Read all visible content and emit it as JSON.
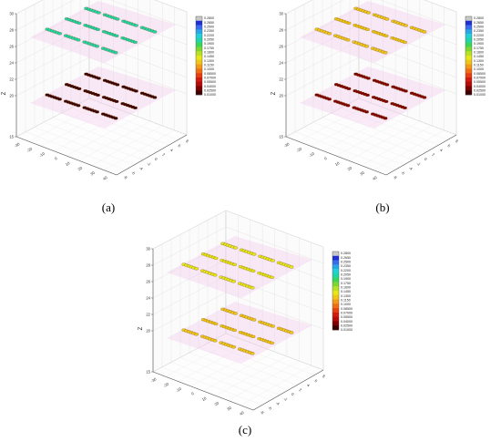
{
  "chart_data": [
    {
      "type": "scatter3d",
      "panel_label": "(a)",
      "zlabel": "Z",
      "zlim": [
        15,
        30
      ],
      "zticks": [
        "15",
        "20",
        "22",
        "24",
        "26",
        "28",
        "30"
      ],
      "xticks": [
        "-30",
        "-20",
        "-10",
        "0",
        "10",
        "20",
        "30",
        "40"
      ],
      "yticks": [
        "-8",
        "-6",
        "-4",
        "-2",
        "0",
        "2",
        "4",
        "6",
        "8"
      ],
      "layers": [
        {
          "z": 20,
          "dominant_value": 0.015
        },
        {
          "z": 28,
          "dominant_value": 0.2
        }
      ],
      "colorbar": {
        "ticks": [
          "0.2800",
          "0.2650",
          "0.2500",
          "0.2350",
          "0.2200",
          "0.2050",
          "0.1900",
          "0.1750",
          "0.1600",
          "0.1450",
          "0.1300",
          "0.1150",
          "0.1000",
          "0.08500",
          "0.07000",
          "0.05500",
          "0.04000",
          "0.02500",
          "0.01000"
        ],
        "colors": [
          "#c9c9c9",
          "#1f2fd6",
          "#3a6cf0",
          "#27a7e8",
          "#22d0d8",
          "#1fd6a8",
          "#3ad65a",
          "#7ed630",
          "#b8e024",
          "#e6e619",
          "#f0c419",
          "#f29a16",
          "#f06d13",
          "#e64011",
          "#d21a0e",
          "#b40a0a",
          "#800000",
          "#3d0000"
        ]
      }
    },
    {
      "type": "scatter3d",
      "panel_label": "(b)",
      "zlabel": "Z",
      "zlim": [
        15,
        30
      ],
      "zticks": [
        "15",
        "20",
        "22",
        "24",
        "26",
        "28",
        "30"
      ],
      "xticks": [
        "-30",
        "-20",
        "-10",
        "0",
        "10",
        "20",
        "30",
        "40"
      ],
      "yticks": [
        "-8",
        "-6",
        "-4",
        "-2",
        "0",
        "2",
        "4",
        "6",
        "8"
      ],
      "layers": [
        {
          "z": 20,
          "dominant_value": 0.03
        },
        {
          "z": 28,
          "dominant_value": 0.12
        }
      ],
      "colorbar": {
        "ticks": [
          "0.2800",
          "0.2650",
          "0.2500",
          "0.2350",
          "0.2200",
          "0.2050",
          "0.1900",
          "0.1750",
          "0.1600",
          "0.1450",
          "0.1300",
          "0.1150",
          "0.1000",
          "0.08500",
          "0.07000",
          "0.05500",
          "0.04000",
          "0.02500",
          "0.01000"
        ],
        "colors": [
          "#c9c9c9",
          "#1f2fd6",
          "#3a6cf0",
          "#27a7e8",
          "#22d0d8",
          "#1fd6a8",
          "#3ad65a",
          "#7ed630",
          "#b8e024",
          "#e6e619",
          "#f0c419",
          "#f29a16",
          "#f06d13",
          "#e64011",
          "#d21a0e",
          "#b40a0a",
          "#800000",
          "#3d0000"
        ]
      }
    },
    {
      "type": "scatter3d",
      "panel_label": "(c)",
      "zlabel": "Z",
      "zlim": [
        15,
        30
      ],
      "zticks": [
        "15",
        "20",
        "22",
        "24",
        "26",
        "28",
        "30"
      ],
      "xticks": [
        "-30",
        "-20",
        "-10",
        "0",
        "10",
        "20",
        "30",
        "40"
      ],
      "yticks": [
        "-8",
        "-6",
        "-4",
        "-2",
        "0",
        "2",
        "4",
        "6",
        "8"
      ],
      "layers": [
        {
          "z": 20,
          "dominant_value": 0.13
        },
        {
          "z": 28,
          "dominant_value": 0.14
        }
      ],
      "colorbar": {
        "ticks": [
          "0.2800",
          "0.2650",
          "0.2500",
          "0.2350",
          "0.2200",
          "0.2050",
          "0.1900",
          "0.1750",
          "0.1600",
          "0.1450",
          "0.1300",
          "0.1150",
          "0.1000",
          "0.08500",
          "0.07000",
          "0.05500",
          "0.04000",
          "0.02500",
          "0.01000"
        ],
        "colors": [
          "#c9c9c9",
          "#1f2fd6",
          "#3a6cf0",
          "#27a7e8",
          "#22d0d8",
          "#1fd6a8",
          "#3ad65a",
          "#7ed630",
          "#b8e024",
          "#e6e619",
          "#f0c419",
          "#f29a16",
          "#f06d13",
          "#e64011",
          "#d21a0e",
          "#b40a0a",
          "#800000",
          "#3d0000"
        ]
      }
    }
  ]
}
